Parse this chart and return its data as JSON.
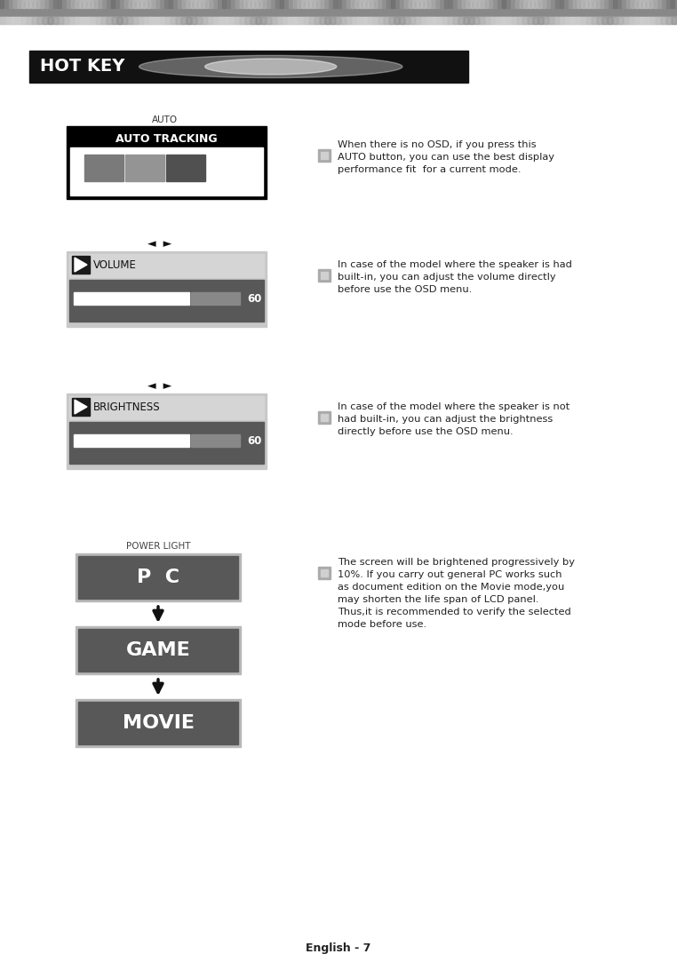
{
  "title": "HOT KEY",
  "page_label": "English - 7",
  "auto_label": "AUTO",
  "auto_tracking_title": "AUTO TRACKING",
  "auto_tracking_squares": [
    "#7a7a7a",
    "#949494",
    "#505050"
  ],
  "volume_label": "VOLUME",
  "volume_value": "60",
  "brightness_label": "BRIGHTNESS",
  "brightness_value": "60",
  "power_light_label": "POWER LIGHT",
  "mode_pc": "P  C",
  "mode_game": "GAME",
  "mode_movie": "MOVIE",
  "text1_line1": "When there is no OSD, if you press this",
  "text1_line2": "AUTO button, you can use the best display",
  "text1_line3": "performance fit  for a current mode.",
  "text2_line1": "In case of the model where the speaker is had",
  "text2_line2": "built-in, you can adjust the volume directly",
  "text2_line3": "before use the OSD menu.",
  "text3_line1": "In case of the model where the speaker is not",
  "text3_line2": "had built-in, you can adjust the brightness",
  "text3_line3": "directly before use the OSD menu.",
  "text4_line1": "The screen will be brightened progressively by",
  "text4_line2": "10%. If you carry out general PC works such",
  "text4_line3": "as document edition on the Movie mode,you",
  "text4_line4": "may shorten the life span of LCD panel.",
  "text4_line5": "Thus,it is recommended to verify the selected",
  "text4_line6": "mode before use.",
  "strip1_color": "#888888",
  "strip2_color": "#aaaaaa",
  "hotkey_bar_color": "#111111",
  "hotkey_glow_color": "#ffffff",
  "hotkey_text_color": "#ffffff",
  "auto_outer_color": "#000000",
  "auto_inner_color": "#ffffff",
  "auto_title_bg": "#000000",
  "osd_outer_color": "#c8c8c8",
  "osd_label_bg": "#d5d5d5",
  "osd_bar_bg": "#585858",
  "osd_bar_white": "#ffffff",
  "osd_bar_gray": "#888888",
  "osd_icon_bg": "#1a1a1a",
  "btn_outer_color": "#b8b8b8",
  "btn_inner_color": "#585858",
  "bullet_color": "#aaaaaa",
  "text_color": "#222222"
}
